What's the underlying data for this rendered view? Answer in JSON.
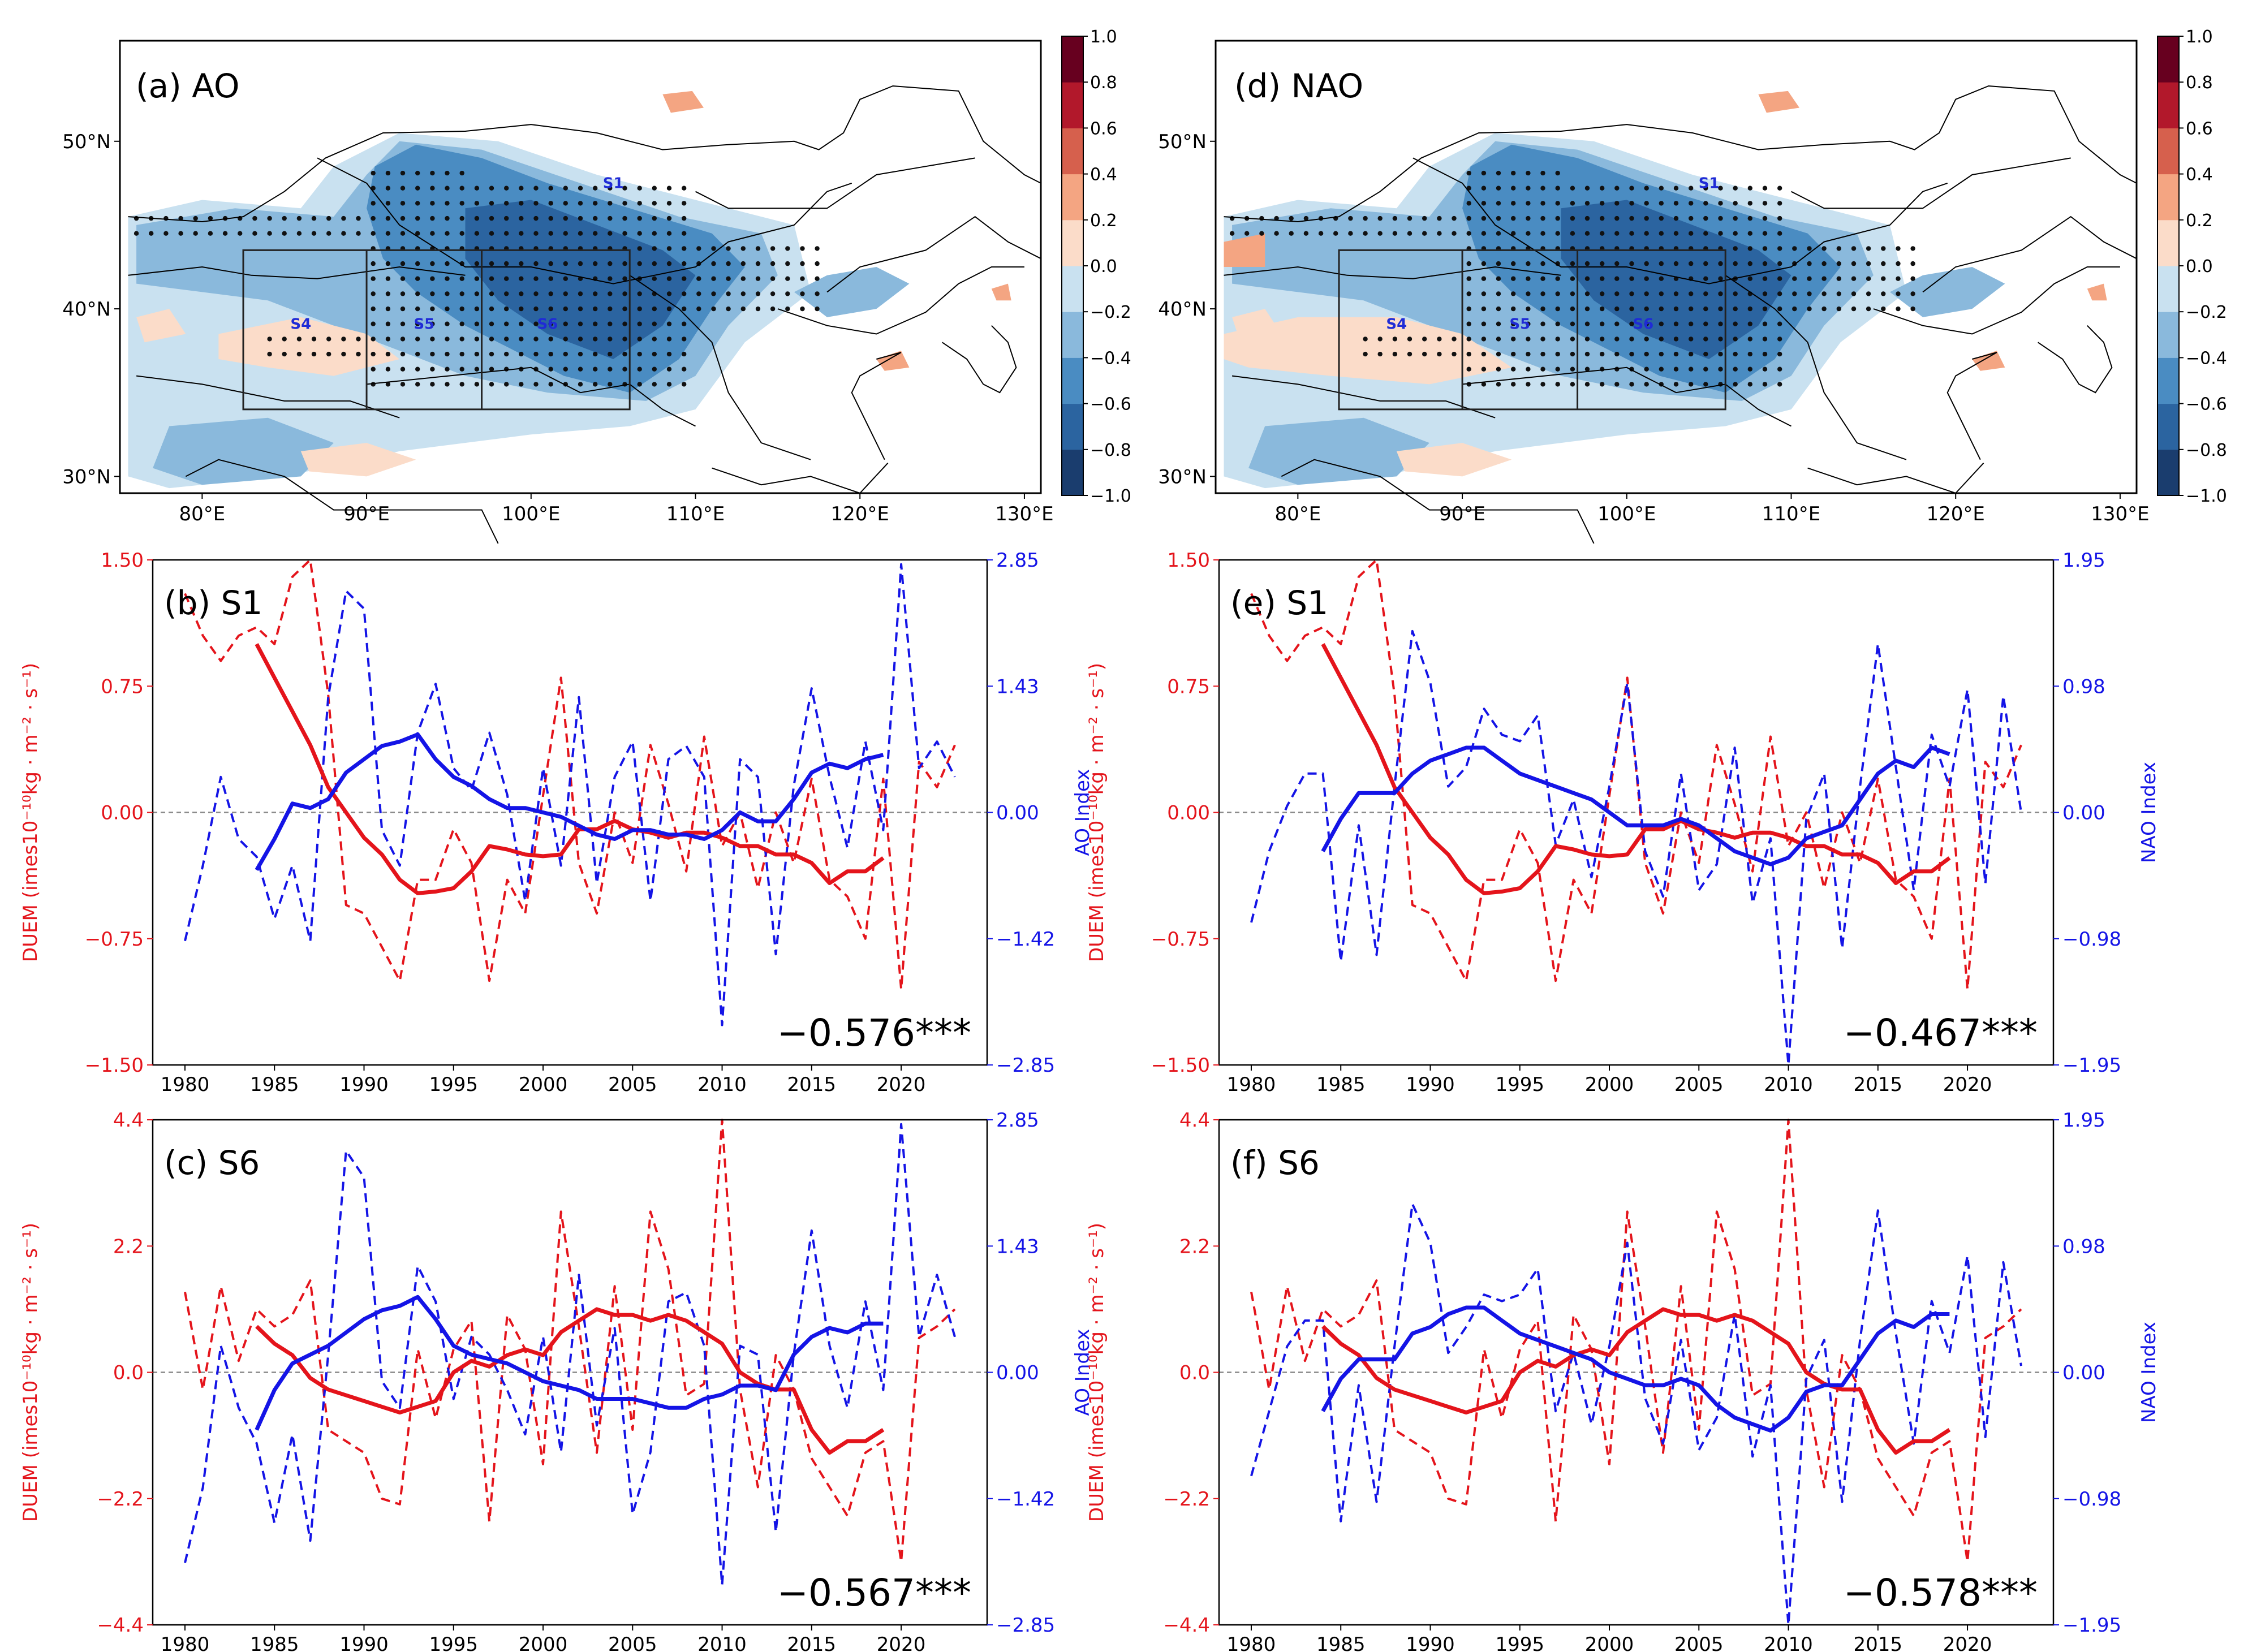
{
  "colors": {
    "duem": "#e4141b",
    "index": "#1414e6",
    "colorbar": [
      "#1a3d6e",
      "#2b64a0",
      "#4a8cc2",
      "#8ab9dc",
      "#c9e1f0",
      "#fbdcc9",
      "#f4a582",
      "#d6604d",
      "#b2182b",
      "#67001f"
    ]
  },
  "years": [
    1980,
    1981,
    1982,
    1983,
    1984,
    1985,
    1986,
    1987,
    1988,
    1989,
    1990,
    1991,
    1992,
    1993,
    1994,
    1995,
    1996,
    1997,
    1998,
    1999,
    2000,
    2001,
    2002,
    2003,
    2004,
    2005,
    2006,
    2007,
    2008,
    2009,
    2010,
    2011,
    2012,
    2013,
    2014,
    2015,
    2016,
    2017,
    2018,
    2019,
    2020,
    2021,
    2022,
    2023
  ],
  "chart_data": [
    {
      "type": "heatmap",
      "panel": "(a) AO",
      "title": "(a) AO",
      "lat_ticks": [
        "30°N",
        "40°N",
        "50°N"
      ],
      "lon_ticks": [
        "80°E",
        "90°E",
        "100°E",
        "110°E",
        "120°E",
        "130°E"
      ],
      "lat_range": [
        29,
        56
      ],
      "lon_range": [
        75,
        131
      ],
      "colorbar_ticks": [
        "1.0",
        "0.8",
        "0.6",
        "0.4",
        "0.2",
        "0.0",
        "−0.2",
        "−0.4",
        "−0.6",
        "−0.8",
        "−1.0"
      ],
      "colorbar_range": [
        -1.0,
        1.0
      ],
      "region_labels": [
        "S1",
        "S4",
        "S5",
        "S6"
      ],
      "regions": [
        {
          "name": "S1",
          "lon": [
            97,
            106
          ],
          "lat": [
            34,
            43.5
          ]
        },
        {
          "name": "S4",
          "lon": [
            83,
            90
          ],
          "lat": [
            34,
            43.5
          ]
        },
        {
          "name": "S5",
          "lon": [
            90,
            97
          ],
          "lat": [
            34,
            43.5
          ]
        },
        {
          "name": "S6",
          "lon": [
            97,
            106
          ],
          "lat": [
            34,
            43.5
          ]
        }
      ]
    },
    {
      "type": "heatmap",
      "panel": "(d) NAO",
      "title": "(d) NAO",
      "lat_ticks": [
        "30°N",
        "40°N",
        "50°N"
      ],
      "lon_ticks": [
        "80°E",
        "90°E",
        "100°E",
        "110°E",
        "120°E",
        "130°E"
      ],
      "lat_range": [
        29,
        56
      ],
      "lon_range": [
        75,
        131
      ],
      "colorbar_ticks": [
        "1.0",
        "0.8",
        "0.6",
        "0.4",
        "0.2",
        "0.0",
        "−0.2",
        "−0.4",
        "−0.6",
        "−0.8",
        "−1.0"
      ],
      "colorbar_range": [
        -1.0,
        1.0
      ],
      "region_labels": [
        "S1",
        "S4",
        "S5",
        "S6"
      ]
    },
    {
      "type": "line",
      "panel": "(b) S1",
      "title": "(b) S1",
      "ylabel": "DUEM (imes10⁻¹⁰kg · m⁻² · s⁻¹)",
      "y2label": "AO Index",
      "ylim": [
        -1.5,
        1.5
      ],
      "y2lim": [
        -2.85,
        2.85
      ],
      "yticks": [
        "−1.50",
        "−0.75",
        "0.00",
        "0.75",
        "1.50"
      ],
      "y2ticks": [
        "−2.85",
        "−1.42",
        "0.00",
        "1.43",
        "2.85"
      ],
      "xticks": [
        "1980",
        "1985",
        "1990",
        "1995",
        "2000",
        "2005",
        "2010",
        "2015",
        "2020"
      ],
      "correlation": "−0.576***",
      "duem": [
        1.3,
        1.05,
        0.9,
        1.05,
        1.1,
        1.0,
        1.4,
        1.5,
        0.7,
        -0.55,
        -0.6,
        -0.8,
        -1.0,
        -0.4,
        -0.4,
        -0.1,
        -0.3,
        -1.0,
        -0.4,
        -0.6,
        0.1,
        0.8,
        -0.3,
        -0.6,
        0.0,
        -0.3,
        0.4,
        0.05,
        -0.35,
        0.45,
        -0.2,
        0.0,
        -0.45,
        0.0,
        -0.3,
        0.2,
        -0.4,
        -0.5,
        -0.75,
        0.2,
        -1.05,
        0.3,
        0.15,
        0.4
      ],
      "duem_smooth": [
        null,
        null,
        null,
        null,
        1.0,
        0.8,
        0.6,
        0.4,
        0.15,
        0.0,
        -0.15,
        -0.25,
        -0.4,
        -0.48,
        -0.47,
        -0.45,
        -0.35,
        -0.2,
        -0.22,
        -0.25,
        -0.26,
        -0.25,
        -0.1,
        -0.1,
        -0.05,
        -0.1,
        -0.12,
        -0.15,
        -0.12,
        -0.12,
        -0.15,
        -0.2,
        -0.2,
        -0.25,
        -0.25,
        -0.3,
        -0.42,
        -0.35,
        -0.35,
        -0.27,
        null,
        null,
        null,
        null
      ],
      "index": [
        -1.45,
        -0.6,
        0.4,
        -0.3,
        -0.5,
        -1.2,
        -0.6,
        -1.45,
        1.3,
        2.5,
        2.3,
        -0.2,
        -0.6,
        0.9,
        1.45,
        0.5,
        0.25,
        0.9,
        0.2,
        -1.0,
        0.5,
        -0.6,
        1.3,
        -0.8,
        0.4,
        0.8,
        -1.0,
        0.6,
        0.75,
        0.4,
        -2.4,
        0.6,
        0.4,
        -1.6,
        0.3,
        1.4,
        0.4,
        -0.4,
        0.8,
        -0.2,
        2.8,
        0.5,
        0.8,
        0.4
      ],
      "index_smooth": [
        null,
        null,
        null,
        null,
        -0.65,
        -0.3,
        0.1,
        0.05,
        0.15,
        0.45,
        0.6,
        0.75,
        0.8,
        0.88,
        0.6,
        0.4,
        0.3,
        0.15,
        0.05,
        0.05,
        0.0,
        -0.05,
        -0.15,
        -0.25,
        -0.3,
        -0.2,
        -0.2,
        -0.25,
        -0.25,
        -0.3,
        -0.2,
        0.0,
        -0.1,
        -0.1,
        0.15,
        0.45,
        0.55,
        0.5,
        0.6,
        0.65,
        null,
        null,
        null,
        null
      ]
    },
    {
      "type": "line",
      "panel": "(c) S6",
      "title": "(c) S6",
      "ylabel": "DUEM (imes10⁻¹⁰kg · m⁻² · s⁻¹)",
      "y2label": "AO Index",
      "ylim": [
        -4.4,
        4.4
      ],
      "y2lim": [
        -2.85,
        2.85
      ],
      "yticks": [
        "−4.4",
        "−2.2",
        "0.0",
        "2.2",
        "4.4"
      ],
      "y2ticks": [
        "−2.85",
        "−1.42",
        "0.00",
        "1.43",
        "2.85"
      ],
      "xticks": [
        "1980",
        "1985",
        "1990",
        "1995",
        "2000",
        "2005",
        "2010",
        "2015",
        "2020"
      ],
      "correlation": "−0.567***",
      "duem": [
        1.4,
        -0.3,
        1.5,
        0.2,
        1.1,
        0.8,
        1.0,
        1.6,
        -1.0,
        -1.2,
        -1.4,
        -2.2,
        -2.3,
        0.4,
        -0.8,
        0.4,
        0.9,
        -2.6,
        1.0,
        0.4,
        -1.6,
        2.8,
        0.8,
        -1.4,
        1.5,
        -1.0,
        2.8,
        1.8,
        -0.4,
        -0.2,
        4.4,
        -0.3,
        -2.0,
        0.3,
        -0.3,
        -1.5,
        -2.0,
        -2.5,
        -1.4,
        -1.2,
        -3.3,
        0.6,
        0.8,
        1.1
      ],
      "duem_smooth": [
        null,
        null,
        null,
        null,
        0.8,
        0.5,
        0.3,
        -0.1,
        -0.3,
        -0.4,
        -0.5,
        -0.6,
        -0.7,
        -0.6,
        -0.5,
        0.0,
        0.2,
        0.1,
        0.3,
        0.4,
        0.3,
        0.7,
        0.9,
        1.1,
        1.0,
        1.0,
        0.9,
        1.0,
        0.9,
        0.7,
        0.5,
        0.0,
        -0.2,
        -0.3,
        -0.3,
        -1.0,
        -1.4,
        -1.2,
        -1.2,
        -1.0,
        null,
        null,
        null,
        null
      ],
      "index": [
        -2.15,
        -1.3,
        0.3,
        -0.4,
        -0.8,
        -1.7,
        -0.7,
        -1.9,
        0.2,
        2.5,
        2.2,
        -0.1,
        -0.4,
        1.2,
        0.8,
        -0.3,
        0.4,
        0.2,
        -0.2,
        -0.7,
        0.4,
        -0.9,
        1.1,
        -0.6,
        0.5,
        -1.6,
        -0.9,
        0.8,
        0.9,
        0.3,
        -2.4,
        0.3,
        0.2,
        -1.8,
        0.2,
        1.6,
        0.3,
        -0.4,
        0.8,
        -0.2,
        2.8,
        0.4,
        1.1,
        0.4
      ],
      "index_smooth": [
        null,
        null,
        null,
        null,
        -0.65,
        -0.2,
        0.1,
        0.2,
        0.3,
        0.45,
        0.6,
        0.7,
        0.75,
        0.85,
        0.6,
        0.3,
        0.2,
        0.15,
        0.1,
        0.0,
        -0.1,
        -0.15,
        -0.2,
        -0.3,
        -0.3,
        -0.3,
        -0.35,
        -0.4,
        -0.4,
        -0.3,
        -0.25,
        -0.15,
        -0.15,
        -0.2,
        0.2,
        0.4,
        0.5,
        0.45,
        0.55,
        0.55,
        null,
        null,
        null,
        null
      ]
    },
    {
      "type": "line",
      "panel": "(e) S1",
      "title": "(e) S1",
      "ylabel": "DUEM (imes10⁻¹⁰kg · m⁻² · s⁻¹)",
      "y2label": "NAO Index",
      "ylim": [
        -1.5,
        1.5
      ],
      "y2lim": [
        -1.95,
        1.95
      ],
      "yticks": [
        "−1.50",
        "−0.75",
        "0.00",
        "0.75",
        "1.50"
      ],
      "y2ticks": [
        "−1.95",
        "−0.98",
        "0.00",
        "0.98",
        "1.95"
      ],
      "xticks": [
        "1980",
        "1985",
        "1990",
        "1995",
        "2000",
        "2005",
        "2010",
        "2015",
        "2020"
      ],
      "correlation": "−0.467***",
      "duem": [
        1.3,
        1.05,
        0.9,
        1.05,
        1.1,
        1.0,
        1.4,
        1.5,
        0.7,
        -0.55,
        -0.6,
        -0.8,
        -1.0,
        -0.4,
        -0.4,
        -0.1,
        -0.3,
        -1.0,
        -0.4,
        -0.6,
        0.1,
        0.8,
        -0.3,
        -0.6,
        0.0,
        -0.3,
        0.4,
        0.05,
        -0.35,
        0.45,
        -0.2,
        0.0,
        -0.45,
        0.0,
        -0.3,
        0.2,
        -0.4,
        -0.5,
        -0.75,
        0.2,
        -1.05,
        0.3,
        0.15,
        0.4
      ],
      "duem_smooth": [
        null,
        null,
        null,
        null,
        1.0,
        0.8,
        0.6,
        0.4,
        0.15,
        0.0,
        -0.15,
        -0.25,
        -0.4,
        -0.48,
        -0.47,
        -0.45,
        -0.35,
        -0.2,
        -0.22,
        -0.25,
        -0.26,
        -0.25,
        -0.1,
        -0.1,
        -0.05,
        -0.1,
        -0.12,
        -0.15,
        -0.12,
        -0.12,
        -0.15,
        -0.2,
        -0.2,
        -0.25,
        -0.25,
        -0.3,
        -0.42,
        -0.35,
        -0.35,
        -0.27,
        null,
        null,
        null,
        null
      ],
      "index": [
        -0.85,
        -0.3,
        0.05,
        0.3,
        0.3,
        -1.15,
        -0.1,
        -1.1,
        0.2,
        1.4,
        1.0,
        0.2,
        0.35,
        0.8,
        0.6,
        0.55,
        0.75,
        -0.25,
        0.1,
        -0.5,
        0.2,
        1.0,
        -0.3,
        -0.65,
        0.3,
        -0.6,
        -0.4,
        0.5,
        -0.7,
        -0.2,
        -1.95,
        -0.05,
        0.3,
        -1.05,
        0.2,
        1.3,
        0.35,
        -0.6,
        0.6,
        0.2,
        0.95,
        -0.55,
        0.9,
        0.0
      ],
      "index_smooth": [
        null,
        null,
        null,
        null,
        -0.3,
        -0.05,
        0.15,
        0.15,
        0.15,
        0.3,
        0.4,
        0.45,
        0.5,
        0.5,
        0.4,
        0.3,
        0.25,
        0.2,
        0.15,
        0.1,
        0.0,
        -0.1,
        -0.1,
        -0.1,
        -0.05,
        -0.1,
        -0.2,
        -0.3,
        -0.35,
        -0.4,
        -0.35,
        -0.2,
        -0.15,
        -0.1,
        0.1,
        0.3,
        0.4,
        0.35,
        0.5,
        0.45,
        null,
        null,
        null,
        null
      ]
    },
    {
      "type": "line",
      "panel": "(f) S6",
      "title": "(f) S6",
      "ylabel": "DUEM (imes10⁻¹⁰kg · m⁻² · s⁻¹)",
      "y2label": "NAO Index",
      "ylim": [
        -4.4,
        4.4
      ],
      "y2lim": [
        -1.95,
        1.95
      ],
      "yticks": [
        "−4.4",
        "−2.2",
        "0.0",
        "2.2",
        "4.4"
      ],
      "y2ticks": [
        "−1.95",
        "−0.98",
        "0.00",
        "0.98",
        "1.95"
      ],
      "xticks": [
        "1980",
        "1985",
        "1990",
        "1995",
        "2000",
        "2005",
        "2010",
        "2015",
        "2020"
      ],
      "correlation": "−0.578***",
      "duem": [
        1.4,
        -0.3,
        1.5,
        0.2,
        1.1,
        0.8,
        1.0,
        1.6,
        -1.0,
        -1.2,
        -1.4,
        -2.2,
        -2.3,
        0.4,
        -0.8,
        0.4,
        0.9,
        -2.6,
        1.0,
        0.4,
        -1.6,
        2.8,
        0.8,
        -1.4,
        1.5,
        -1.0,
        2.8,
        1.8,
        -0.4,
        -0.2,
        4.4,
        -0.3,
        -2.0,
        0.3,
        -0.3,
        -1.5,
        -2.0,
        -2.5,
        -1.4,
        -1.2,
        -3.3,
        0.6,
        0.8,
        1.1
      ],
      "duem_smooth": [
        null,
        null,
        null,
        null,
        0.8,
        0.5,
        0.3,
        -0.1,
        -0.3,
        -0.4,
        -0.5,
        -0.6,
        -0.7,
        -0.6,
        -0.5,
        0.0,
        0.2,
        0.1,
        0.3,
        0.4,
        0.3,
        0.7,
        0.9,
        1.1,
        1.0,
        1.0,
        0.9,
        1.0,
        0.9,
        0.7,
        0.5,
        0.0,
        -0.2,
        -0.3,
        -0.3,
        -1.0,
        -1.4,
        -1.2,
        -1.2,
        -1.0,
        null,
        null,
        null,
        null
      ],
      "index": [
        -0.8,
        -0.3,
        0.2,
        0.4,
        0.4,
        -1.15,
        -0.1,
        -1.0,
        0.2,
        1.3,
        1.0,
        0.15,
        0.35,
        0.6,
        0.55,
        0.6,
        0.8,
        -0.3,
        0.15,
        -0.4,
        0.2,
        1.0,
        -0.2,
        -0.55,
        0.25,
        -0.6,
        -0.35,
        0.45,
        -0.65,
        -0.1,
        -1.95,
        -0.05,
        0.25,
        -1.0,
        0.25,
        1.25,
        0.3,
        -0.55,
        0.55,
        0.15,
        0.9,
        -0.5,
        0.85,
        0.05
      ],
      "index_smooth": [
        null,
        null,
        null,
        null,
        -0.3,
        -0.05,
        0.1,
        0.1,
        0.1,
        0.3,
        0.35,
        0.45,
        0.5,
        0.5,
        0.4,
        0.3,
        0.25,
        0.2,
        0.15,
        0.1,
        0.0,
        -0.05,
        -0.1,
        -0.1,
        -0.05,
        -0.1,
        -0.25,
        -0.35,
        -0.4,
        -0.45,
        -0.35,
        -0.15,
        -0.1,
        -0.1,
        0.1,
        0.3,
        0.4,
        0.35,
        0.45,
        0.45,
        null,
        null,
        null,
        null
      ]
    }
  ]
}
